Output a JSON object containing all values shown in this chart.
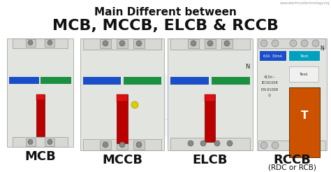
{
  "title_line1": "Main Different between",
  "title_line2": "MCB, MCCB, ELCB & RCCB",
  "labels": [
    "MCB",
    "MCCB",
    "ELCB",
    "RCCB"
  ],
  "sublabels": [
    "",
    "",
    "",
    "(RDC or RCB)"
  ],
  "bg_color": "#ffffff",
  "title_color": "#111111",
  "label_color": "#111111",
  "title_fontsize1": 11,
  "title_fontsize2": 16,
  "label_fontsize": 13,
  "sublabel_fontsize": 7.5,
  "website_text": "www.electricaltechnology.org",
  "watermark_color": "#b8cce8"
}
